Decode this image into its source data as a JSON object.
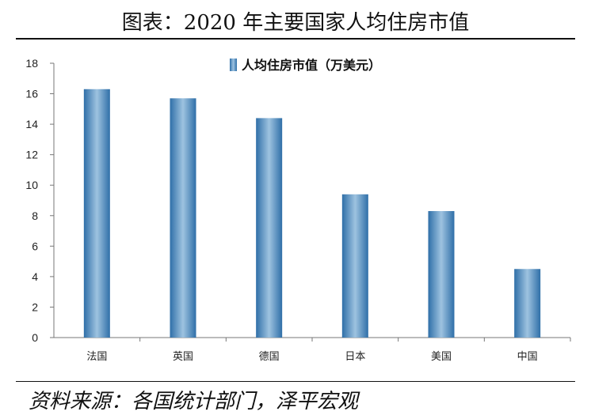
{
  "figure": {
    "title": "图表：2020 年主要国家人均住房市值",
    "source": "资料来源：各国统计部门，泽平宏观"
  },
  "chart_data": {
    "type": "bar",
    "categories": [
      "法国",
      "英国",
      "德国",
      "日本",
      "美国",
      "中国"
    ],
    "series": [
      {
        "name": "人均住房市值（万美元）",
        "values": [
          16.3,
          15.7,
          14.4,
          9.4,
          8.3,
          4.5
        ]
      }
    ],
    "ylim": [
      0,
      18
    ],
    "yticks": [
      0,
      2,
      4,
      6,
      8,
      10,
      12,
      14,
      16,
      18
    ],
    "grid": false,
    "legend_position": "top-center",
    "colors": {
      "bar_edge": "#2f6fa8",
      "bar_center": "#9ec3e0"
    }
  }
}
